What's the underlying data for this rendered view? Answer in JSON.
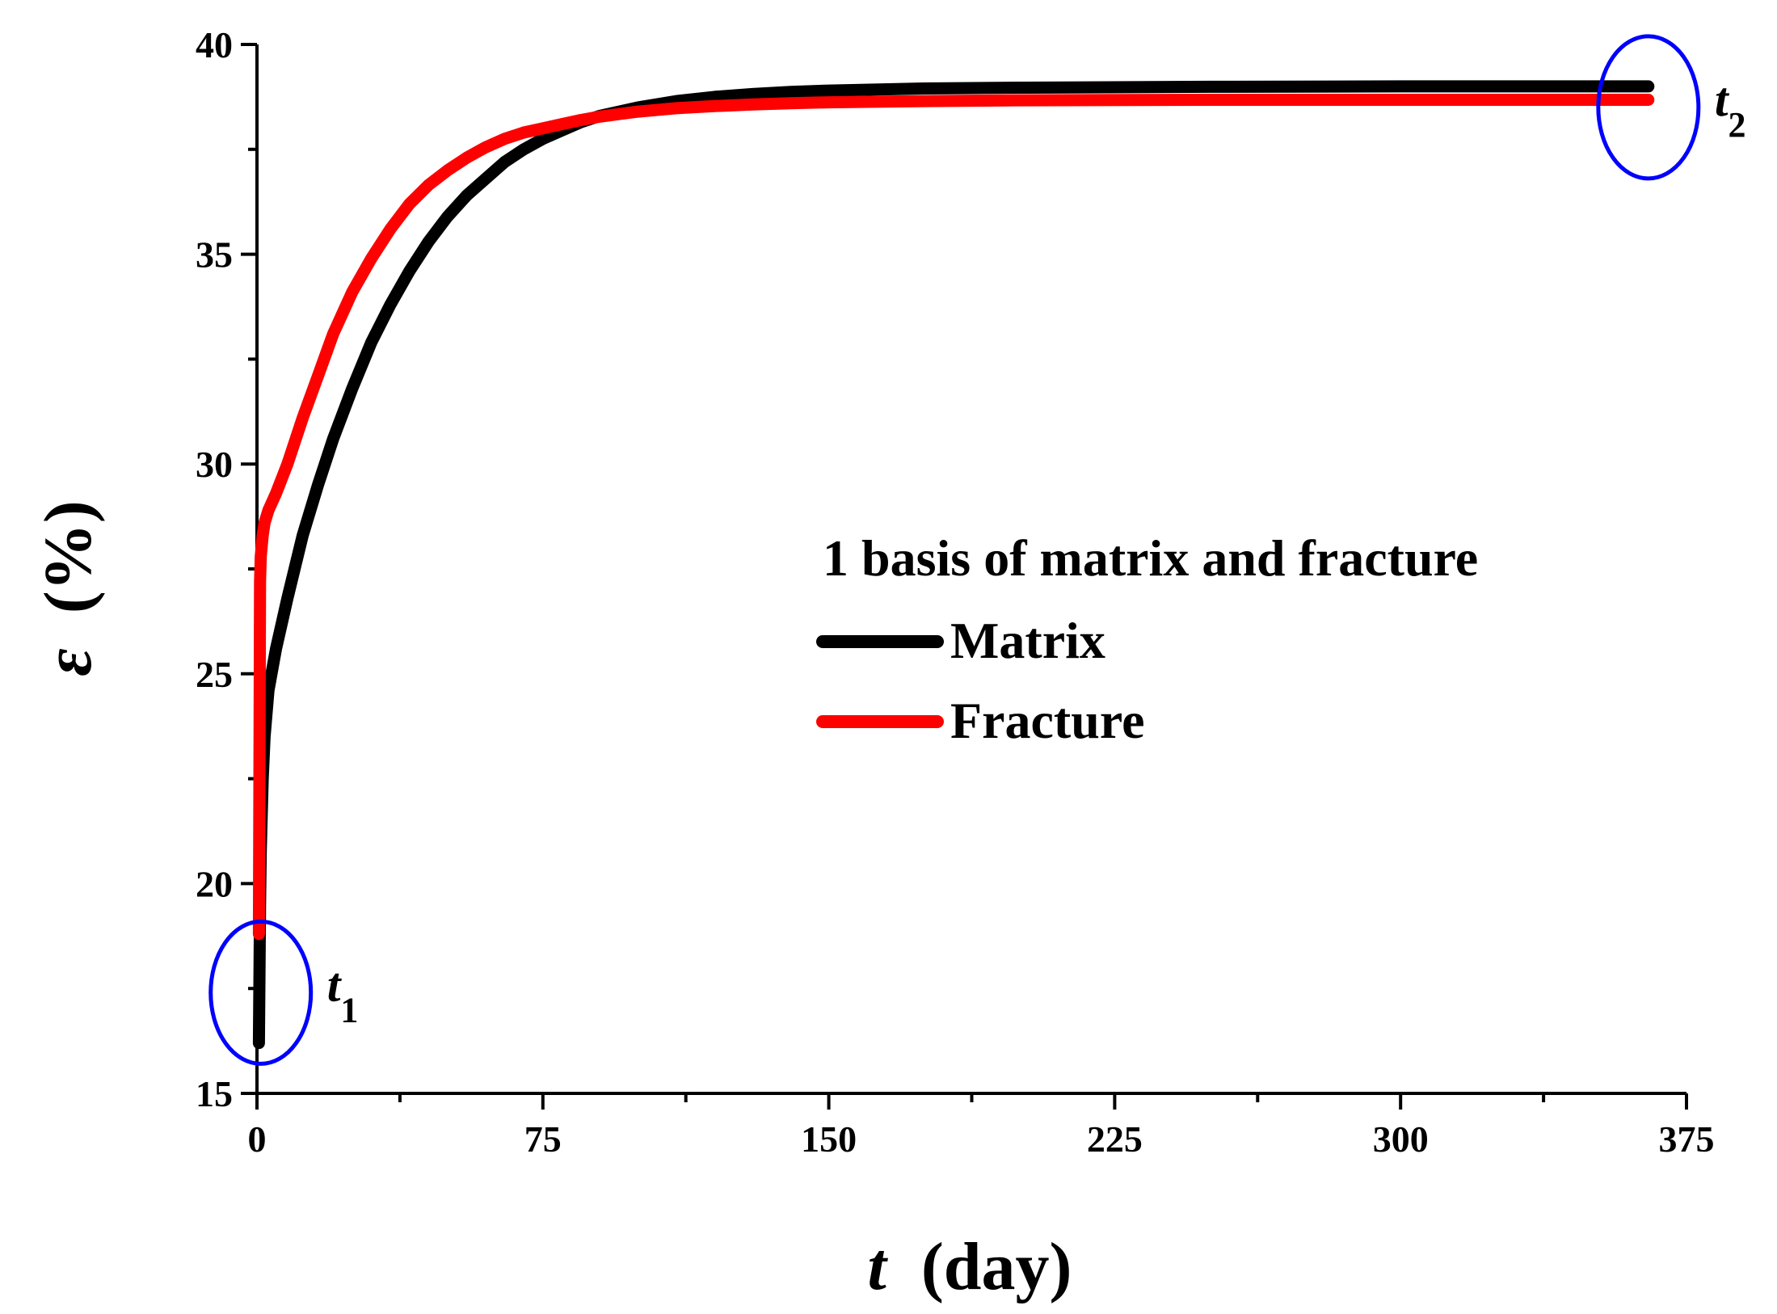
{
  "chart_data": {
    "type": "line",
    "xlabel_symbol": "t",
    "xlabel_unit": "(day)",
    "ylabel_symbol": "ε",
    "ylabel_unit": "(%)",
    "xlim": [
      0,
      375
    ],
    "ylim": [
      15,
      40
    ],
    "x_ticks": [
      0,
      75,
      150,
      225,
      300,
      375
    ],
    "x_tick_labels": [
      "0",
      "75",
      "150",
      "225",
      "300",
      "375"
    ],
    "y_ticks": [
      15,
      20,
      25,
      30,
      35,
      40
    ],
    "y_tick_labels": [
      "15",
      "20",
      "25",
      "30",
      "35",
      "40"
    ],
    "grid": false,
    "legend": {
      "title": "1 basis of matrix and fracture",
      "placement": "center-right"
    },
    "series": [
      {
        "name": "Matrix",
        "color": "#000000",
        "x": [
          0.5,
          0.8,
          1,
          1.5,
          2,
          3,
          5,
          8,
          12,
          16,
          20,
          25,
          30,
          35,
          40,
          45,
          50,
          55,
          60,
          65,
          70,
          75,
          80,
          85,
          90,
          100,
          110,
          120,
          130,
          140,
          150,
          175,
          200,
          250,
          300,
          365
        ],
        "y": [
          16.2,
          19.5,
          20.8,
          22.5,
          23.5,
          24.6,
          25.6,
          26.8,
          28.3,
          29.5,
          30.6,
          31.8,
          32.9,
          33.8,
          34.6,
          35.3,
          35.9,
          36.4,
          36.8,
          37.2,
          37.5,
          37.75,
          37.95,
          38.15,
          38.3,
          38.5,
          38.65,
          38.75,
          38.82,
          38.87,
          38.9,
          38.95,
          38.97,
          38.99,
          39.0,
          39.0
        ]
      },
      {
        "name": "Fracture",
        "color": "#ff0000",
        "x": [
          0.5,
          0.8,
          1,
          1.5,
          2,
          3,
          5,
          8,
          12,
          16,
          20,
          25,
          30,
          35,
          40,
          45,
          50,
          55,
          60,
          65,
          70,
          75,
          80,
          85,
          90,
          100,
          110,
          120,
          130,
          140,
          150,
          175,
          200,
          250,
          300,
          365
        ],
        "y": [
          18.8,
          27.2,
          27.8,
          28.3,
          28.6,
          28.9,
          29.3,
          30.0,
          31.1,
          32.1,
          33.1,
          34.1,
          34.9,
          35.6,
          36.2,
          36.65,
          37.0,
          37.3,
          37.55,
          37.75,
          37.9,
          38.0,
          38.1,
          38.2,
          38.28,
          38.4,
          38.48,
          38.53,
          38.57,
          38.6,
          38.62,
          38.65,
          38.67,
          38.68,
          38.68,
          38.68
        ]
      }
    ],
    "annotations": [
      {
        "label": "t",
        "subscript": "1",
        "circle_center": [
          1,
          17.4
        ],
        "color": "#0000ff"
      },
      {
        "label": "t",
        "subscript": "2",
        "circle_center": [
          365,
          38.5
        ],
        "color": "#0000ff"
      }
    ]
  }
}
